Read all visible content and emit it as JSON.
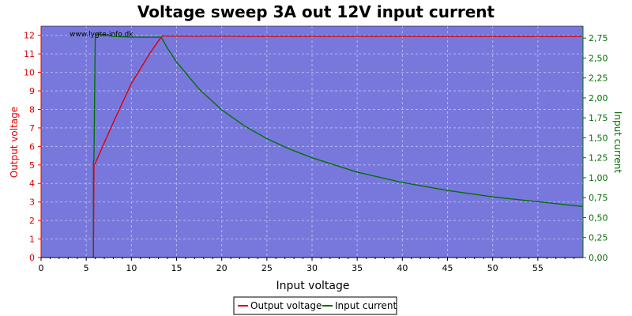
{
  "chart_data": {
    "type": "line",
    "title": "Voltage sweep 3A out 12V input current",
    "watermark": "www.lygte-info.dk",
    "xlabel": "Input voltage",
    "ylabel_left": "Output voltage",
    "ylabel_right": "Input current",
    "xlim": [
      0,
      60
    ],
    "ylim_left": [
      0,
      12.5
    ],
    "ylim_right": [
      0,
      2.9
    ],
    "x_ticks": [
      0,
      5,
      10,
      15,
      20,
      25,
      30,
      35,
      40,
      45,
      50,
      55
    ],
    "y_left_ticks": [
      0,
      1,
      2,
      3,
      4,
      5,
      6,
      7,
      8,
      9,
      10,
      11,
      12
    ],
    "y_right_ticks": [
      "0,00",
      "0,25",
      "0,50",
      "0,75",
      "1,00",
      "1,25",
      "1,50",
      "1,75",
      "2,00",
      "2,25",
      "2,50",
      "2,75"
    ],
    "y_right_tick_values": [
      0,
      0.25,
      0.5,
      0.75,
      1.0,
      1.25,
      1.5,
      1.75,
      2.0,
      2.25,
      2.5,
      2.75
    ],
    "grid": true,
    "legend_position": "bottom-center",
    "colors": {
      "plot_background": "#7878dc",
      "output_voltage": "#dd0000",
      "input_current": "#007000",
      "grid": "#b4b4ee"
    },
    "series": [
      {
        "name": "Output voltage",
        "axis": "left",
        "x": [
          5.8,
          5.8,
          5.85,
          6.0,
          8.0,
          10.0,
          12.0,
          13.0,
          13.4,
          15,
          20,
          25,
          30,
          35,
          40,
          45,
          50,
          55,
          59.9
        ],
        "y": [
          0.0,
          0.05,
          5.0,
          5.1,
          7.3,
          9.4,
          11.0,
          11.7,
          11.97,
          11.96,
          11.96,
          11.95,
          11.95,
          11.95,
          11.95,
          11.94,
          11.94,
          11.94,
          11.94
        ]
      },
      {
        "name": "Input current",
        "axis": "right",
        "x": [
          5.8,
          5.8,
          5.85,
          6.0,
          7.0,
          8.0,
          10.0,
          12.0,
          13.3,
          14.0,
          15,
          17.5,
          20,
          22.5,
          25,
          27.5,
          30,
          35,
          40,
          45,
          50,
          55,
          59.9
        ],
        "y": [
          0.0,
          1.2,
          1.22,
          2.8,
          2.79,
          2.77,
          2.76,
          2.76,
          2.76,
          2.62,
          2.45,
          2.11,
          1.85,
          1.65,
          1.49,
          1.36,
          1.25,
          1.07,
          0.94,
          0.84,
          0.76,
          0.7,
          0.64
        ]
      }
    ]
  }
}
